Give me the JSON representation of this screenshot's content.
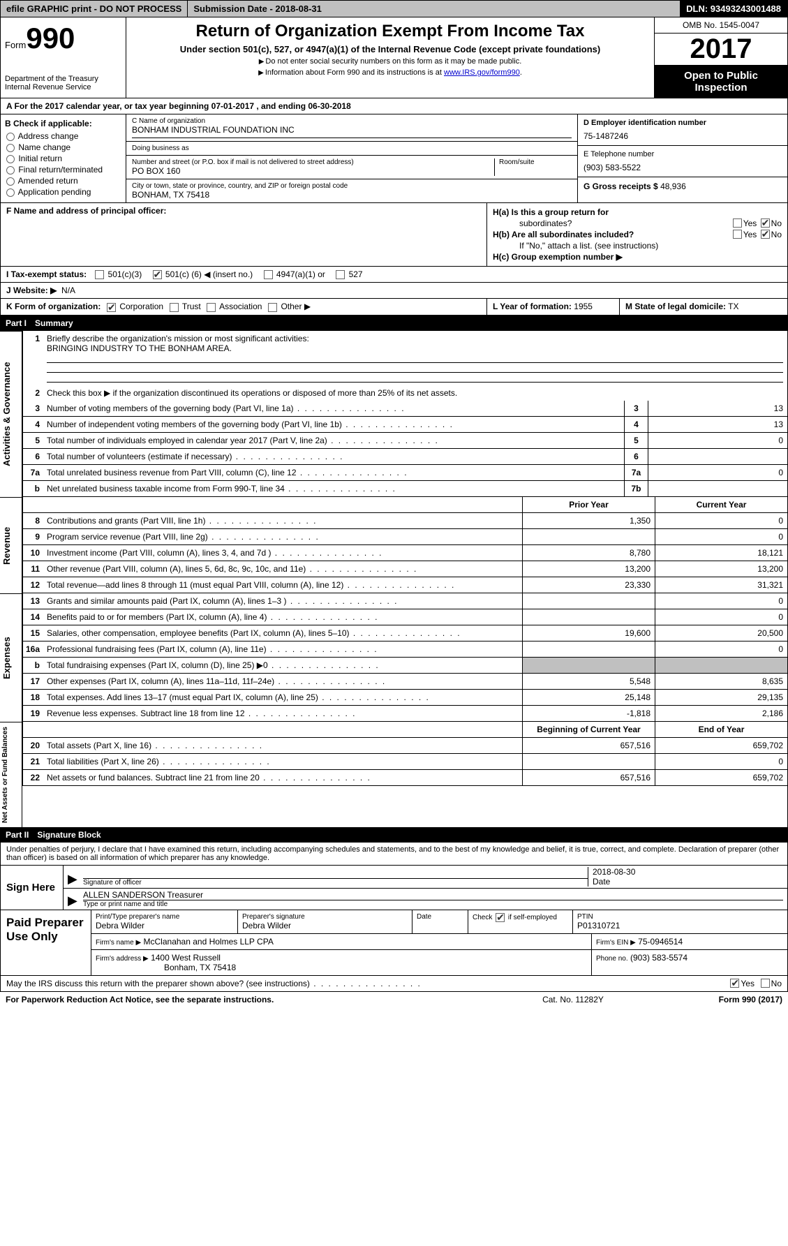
{
  "topbar": {
    "efile": "efile GRAPHIC print - DO NOT PROCESS",
    "submission": "Submission Date - 2018-08-31",
    "dln": "DLN: 93493243001488"
  },
  "header": {
    "form_label": "Form",
    "form_num": "990",
    "dept1": "Department of the Treasury",
    "dept2": "Internal Revenue Service",
    "title": "Return of Organization Exempt From Income Tax",
    "subtitle": "Under section 501(c), 527, or 4947(a)(1) of the Internal Revenue Code (except private foundations)",
    "note1": "Do not enter social security numbers on this form as it may be made public.",
    "note2": "Information about Form 990 and its instructions is at ",
    "link": "www.IRS.gov/form990",
    "omb": "OMB No. 1545-0047",
    "year": "2017",
    "open": "Open to Public Inspection"
  },
  "sectionA": "A  For the 2017 calendar year, or tax year beginning 07-01-2017   , and ending 06-30-2018",
  "sectionB": {
    "label": "B Check if applicable:",
    "opts": [
      "Address change",
      "Name change",
      "Initial return",
      "Final return/terminated",
      "Amended return",
      "Application pending"
    ]
  },
  "sectionC": {
    "name_lbl": "C Name of organization",
    "name": "BONHAM INDUSTRIAL FOUNDATION INC",
    "dba_lbl": "Doing business as",
    "dba": "",
    "addr_lbl": "Number and street (or P.O. box if mail is not delivered to street address)",
    "room_lbl": "Room/suite",
    "addr": "PO BOX 160",
    "city_lbl": "City or town, state or province, country, and ZIP or foreign postal code",
    "city": "BONHAM, TX  75418"
  },
  "sectionD": {
    "ein_lbl": "D Employer identification number",
    "ein": "75-1487246",
    "tel_lbl": "E Telephone number",
    "tel": "(903) 583-5522",
    "gross_lbl": "G Gross receipts $",
    "gross": "48,936"
  },
  "sectionF": {
    "label": "F Name and address of principal officer:",
    "value": ""
  },
  "sectionH": {
    "ha1": "H(a)  Is this a group return for",
    "ha2": "subordinates?",
    "hb": "H(b)  Are all subordinates included?",
    "hbno": "If \"No,\" attach a list. (see instructions)",
    "hc": "H(c)  Group exemption number ▶",
    "yes": "Yes",
    "no": "No"
  },
  "sectionI": {
    "label": "I  Tax-exempt status:",
    "o1": "501(c)(3)",
    "o2": "501(c) (",
    "o2n": "6",
    "o2b": ") ◀ (insert no.)",
    "o3": "4947(a)(1) or",
    "o4": "527"
  },
  "sectionJ": {
    "label": "J  Website: ▶",
    "value": "N/A"
  },
  "sectionK": {
    "label": "K Form of organization:",
    "o1": "Corporation",
    "o2": "Trust",
    "o3": "Association",
    "o4": "Other ▶"
  },
  "sectionL": {
    "label": "L Year of formation:",
    "value": "1955"
  },
  "sectionM": {
    "label": "M State of legal domicile:",
    "value": "TX"
  },
  "part1": {
    "hdr_num": "Part I",
    "hdr_title": "Summary",
    "line1_lbl": "Briefly describe the organization's mission or most significant activities:",
    "line1_val": "BRINGING INDUSTRY TO THE BONHAM AREA.",
    "line2": "Check this box ▶       if the organization discontinued its operations or disposed of more than 25% of its net assets.",
    "rows_gov": [
      {
        "n": "3",
        "t": "Number of voting members of the governing body (Part VI, line 1a)",
        "c": "3",
        "v": "13"
      },
      {
        "n": "4",
        "t": "Number of independent voting members of the governing body (Part VI, line 1b)",
        "c": "4",
        "v": "13"
      },
      {
        "n": "5",
        "t": "Total number of individuals employed in calendar year 2017 (Part V, line 2a)",
        "c": "5",
        "v": "0"
      },
      {
        "n": "6",
        "t": "Total number of volunteers (estimate if necessary)",
        "c": "6",
        "v": ""
      },
      {
        "n": "7a",
        "t": "Total unrelated business revenue from Part VIII, column (C), line 12",
        "c": "7a",
        "v": "0"
      },
      {
        "n": "b",
        "t": "Net unrelated business taxable income from Form 990-T, line 34",
        "c": "7b",
        "v": ""
      }
    ],
    "col_prior": "Prior Year",
    "col_curr": "Current Year",
    "rows_rev": [
      {
        "n": "8",
        "t": "Contributions and grants (Part VIII, line 1h)",
        "p": "1,350",
        "c": "0"
      },
      {
        "n": "9",
        "t": "Program service revenue (Part VIII, line 2g)",
        "p": "",
        "c": "0"
      },
      {
        "n": "10",
        "t": "Investment income (Part VIII, column (A), lines 3, 4, and 7d )",
        "p": "8,780",
        "c": "18,121"
      },
      {
        "n": "11",
        "t": "Other revenue (Part VIII, column (A), lines 5, 6d, 8c, 9c, 10c, and 11e)",
        "p": "13,200",
        "c": "13,200"
      },
      {
        "n": "12",
        "t": "Total revenue—add lines 8 through 11 (must equal Part VIII, column (A), line 12)",
        "p": "23,330",
        "c": "31,321"
      }
    ],
    "rows_exp": [
      {
        "n": "13",
        "t": "Grants and similar amounts paid (Part IX, column (A), lines 1–3 )",
        "p": "",
        "c": "0"
      },
      {
        "n": "14",
        "t": "Benefits paid to or for members (Part IX, column (A), line 4)",
        "p": "",
        "c": "0"
      },
      {
        "n": "15",
        "t": "Salaries, other compensation, employee benefits (Part IX, column (A), lines 5–10)",
        "p": "19,600",
        "c": "20,500"
      },
      {
        "n": "16a",
        "t": "Professional fundraising fees (Part IX, column (A), line 11e)",
        "p": "",
        "c": "0"
      },
      {
        "n": "b",
        "t": "Total fundraising expenses (Part IX, column (D), line 25) ▶0",
        "p": "GREY",
        "c": "GREY"
      },
      {
        "n": "17",
        "t": "Other expenses (Part IX, column (A), lines 11a–11d, 11f–24e)",
        "p": "5,548",
        "c": "8,635"
      },
      {
        "n": "18",
        "t": "Total expenses. Add lines 13–17 (must equal Part IX, column (A), line 25)",
        "p": "25,148",
        "c": "29,135"
      },
      {
        "n": "19",
        "t": "Revenue less expenses. Subtract line 18 from line 12",
        "p": "-1,818",
        "c": "2,186"
      }
    ],
    "col_begin": "Beginning of Current Year",
    "col_end": "End of Year",
    "rows_net": [
      {
        "n": "20",
        "t": "Total assets (Part X, line 16)",
        "p": "657,516",
        "c": "659,702"
      },
      {
        "n": "21",
        "t": "Total liabilities (Part X, line 26)",
        "p": "",
        "c": "0"
      },
      {
        "n": "22",
        "t": "Net assets or fund balances. Subtract line 21 from line 20",
        "p": "657,516",
        "c": "659,702"
      }
    ],
    "side_gov": "Activities & Governance",
    "side_rev": "Revenue",
    "side_exp": "Expenses",
    "side_net": "Net Assets or Fund Balances"
  },
  "part2": {
    "hdr_num": "Part II",
    "hdr_title": "Signature Block",
    "decl": "Under penalties of perjury, I declare that I have examined this return, including accompanying schedules and statements, and to the best of my knowledge and belief, it is true, correct, and complete. Declaration of preparer (other than officer) is based on all information of which preparer has any knowledge.",
    "sign_here": "Sign Here",
    "sig_officer_cap": "Signature of officer",
    "sig_date": "2018-08-30",
    "sig_date_cap": "Date",
    "officer_name": "ALLEN SANDERSON Treasurer",
    "officer_cap": "Type or print name and title",
    "paid": "Paid Preparer Use Only",
    "prep_name_lbl": "Print/Type preparer's name",
    "prep_name": "Debra Wilder",
    "prep_sig_lbl": "Preparer's signature",
    "prep_sig": "Debra Wilder",
    "prep_date_lbl": "Date",
    "prep_date": "",
    "prep_check": "Check        if self-employed",
    "prep_ptin_lbl": "PTIN",
    "prep_ptin": "P01310721",
    "firm_name_lbl": "Firm's name     ▶",
    "firm_name": "McClanahan and Holmes LLP CPA",
    "firm_ein_lbl": "Firm's EIN ▶",
    "firm_ein": "75-0946514",
    "firm_addr_lbl": "Firm's address ▶",
    "firm_addr": "1400 West Russell",
    "firm_addr2": "Bonham, TX  75418",
    "firm_phone_lbl": "Phone no.",
    "firm_phone": "(903) 583-5574",
    "discuss": "May the IRS discuss this return with the preparer shown above? (see instructions)",
    "yes": "Yes",
    "no": "No"
  },
  "footer": {
    "pra": "For Paperwork Reduction Act Notice, see the separate instructions.",
    "cat": "Cat. No. 11282Y",
    "form": "Form 990 (2017)"
  }
}
